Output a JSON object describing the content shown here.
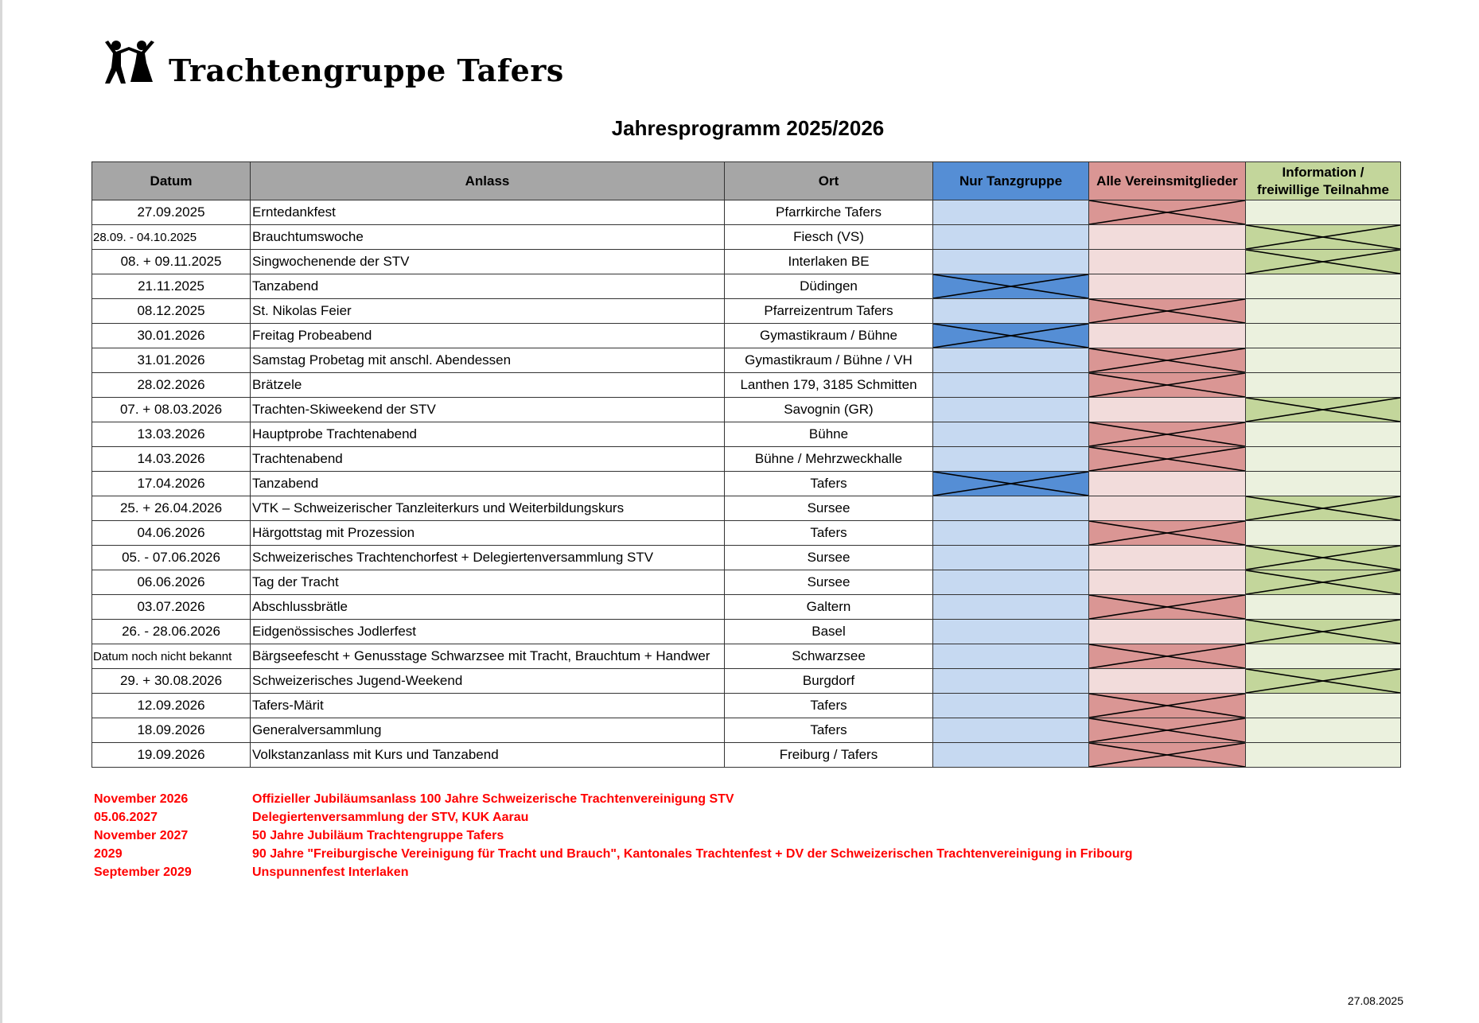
{
  "logo": {
    "text": "Trachtengruppe Tafers",
    "icon": "dancing-couple-icon"
  },
  "title": "Jahresprogramm 2025/2026",
  "table": {
    "headers": [
      "Datum",
      "Anlass",
      "Ort",
      "Nur Tanzgruppe",
      "Alle Vereinsmitglieder",
      "Information / freiwillige Teilnahme"
    ],
    "colors": {
      "grey": "#a6a6a6",
      "tanz": "#558ed5",
      "tanz_light": "#c6d9f1",
      "alle": "#da9694",
      "alle_light": "#f2dcdb",
      "info": "#c3d69b",
      "info_light": "#ebf1de"
    },
    "rows": [
      {
        "datum": "27.09.2025",
        "anlass": "Erntedankfest",
        "ort": "Pfarrkirche Tafers",
        "mark": "alle"
      },
      {
        "datum": "28.09. - 04.10.2025",
        "anlass": "Brauchtumswoche",
        "ort": "Fiesch (VS)",
        "mark": "info"
      },
      {
        "datum": "08. + 09.11.2025",
        "anlass": "Singwochenende der STV",
        "ort": "Interlaken BE",
        "mark": "info"
      },
      {
        "datum": "21.11.2025",
        "anlass": "Tanzabend",
        "ort": "Düdingen",
        "mark": "tanz"
      },
      {
        "datum": "08.12.2025",
        "anlass": "St. Nikolas Feier",
        "ort": "Pfarreizentrum Tafers",
        "mark": "alle"
      },
      {
        "datum": "30.01.2026",
        "anlass": "Freitag Probeabend",
        "ort": "Gymastikraum / Bühne",
        "mark": "tanz"
      },
      {
        "datum": "31.01.2026",
        "anlass": "Samstag Probetag mit anschl. Abendessen",
        "ort": "Gymastikraum / Bühne / VH",
        "mark": "alle"
      },
      {
        "datum": "28.02.2026",
        "anlass": "Brätzele",
        "ort": "Lanthen 179, 3185 Schmitten",
        "mark": "alle"
      },
      {
        "datum": "07. + 08.03.2026",
        "anlass": "Trachten-Skiweekend der STV",
        "ort": "Savognin (GR)",
        "mark": "info"
      },
      {
        "datum": "13.03.2026",
        "anlass": "Hauptprobe Trachtenabend",
        "ort": "Bühne",
        "mark": "alle"
      },
      {
        "datum": "14.03.2026",
        "anlass": "Trachtenabend",
        "ort": "Bühne / Mehrzweckhalle",
        "mark": "alle"
      },
      {
        "datum": "17.04.2026",
        "anlass": "Tanzabend",
        "ort": "Tafers",
        "mark": "tanz"
      },
      {
        "datum": "25. + 26.04.2026",
        "anlass": "VTK – Schweizerischer Tanzleiterkurs und Weiterbildungskurs",
        "ort": "Sursee",
        "mark": "info"
      },
      {
        "datum": "04.06.2026",
        "anlass": "Härgottstag mit Prozession",
        "ort": "Tafers",
        "mark": "alle"
      },
      {
        "datum": "05. - 07.06.2026",
        "anlass": "Schweizerisches Trachtenchorfest + Delegiertenversammlung STV",
        "ort": "Sursee",
        "mark": "info"
      },
      {
        "datum": "06.06.2026",
        "anlass": "Tag der Tracht",
        "ort": "Sursee",
        "mark": "info"
      },
      {
        "datum": "03.07.2026",
        "anlass": "Abschlussbrätle",
        "ort": "Galtern",
        "mark": "alle"
      },
      {
        "datum": "26. - 28.06.2026",
        "anlass": "Eidgenössisches Jodlerfest",
        "ort": "Basel",
        "mark": "info"
      },
      {
        "datum": "Datum noch nicht bekannt",
        "anlass": "Bärgseefescht + Genusstage Schwarzsee mit Tracht, Brauchtum + Handwer",
        "ort": "Schwarzsee",
        "mark": "alle"
      },
      {
        "datum": "29. + 30.08.2026",
        "anlass": "Schweizerisches Jugend-Weekend",
        "ort": "Burgdorf",
        "mark": "info"
      },
      {
        "datum": "12.09.2026",
        "anlass": "Tafers-Märit",
        "ort": "Tafers",
        "mark": "alle"
      },
      {
        "datum": "18.09.2026",
        "anlass": "Generalversammlung",
        "ort": "Tafers",
        "mark": "alle"
      },
      {
        "datum": "19.09.2026",
        "anlass": "Volkstanzanlass mit Kurs und Tanzabend",
        "ort": "Freiburg / Tafers",
        "mark": "alle"
      }
    ]
  },
  "notes": {
    "color": "#ff0000",
    "items": [
      {
        "date": "November 2026",
        "text": "Offizieller Jubiläumsanlass 100 Jahre Schweizerische Trachtenvereinigung STV"
      },
      {
        "date": "05.06.2027",
        "text": "Delegiertenversammlung der STV, KUK Aarau"
      },
      {
        "date": "November 2027",
        "text": "50 Jahre Jubiläum Trachtengruppe Tafers"
      },
      {
        "date": "2029",
        "text": "90 Jahre \"Freiburgische Vereinigung für Tracht und Brauch\", Kantonales Trachtenfest + DV der Schweizerischen Trachtenvereinigung in Fribourg"
      },
      {
        "date": "September 2029",
        "text": "Unspunnenfest Interlaken"
      }
    ]
  },
  "footer_date": "27.08.2025"
}
